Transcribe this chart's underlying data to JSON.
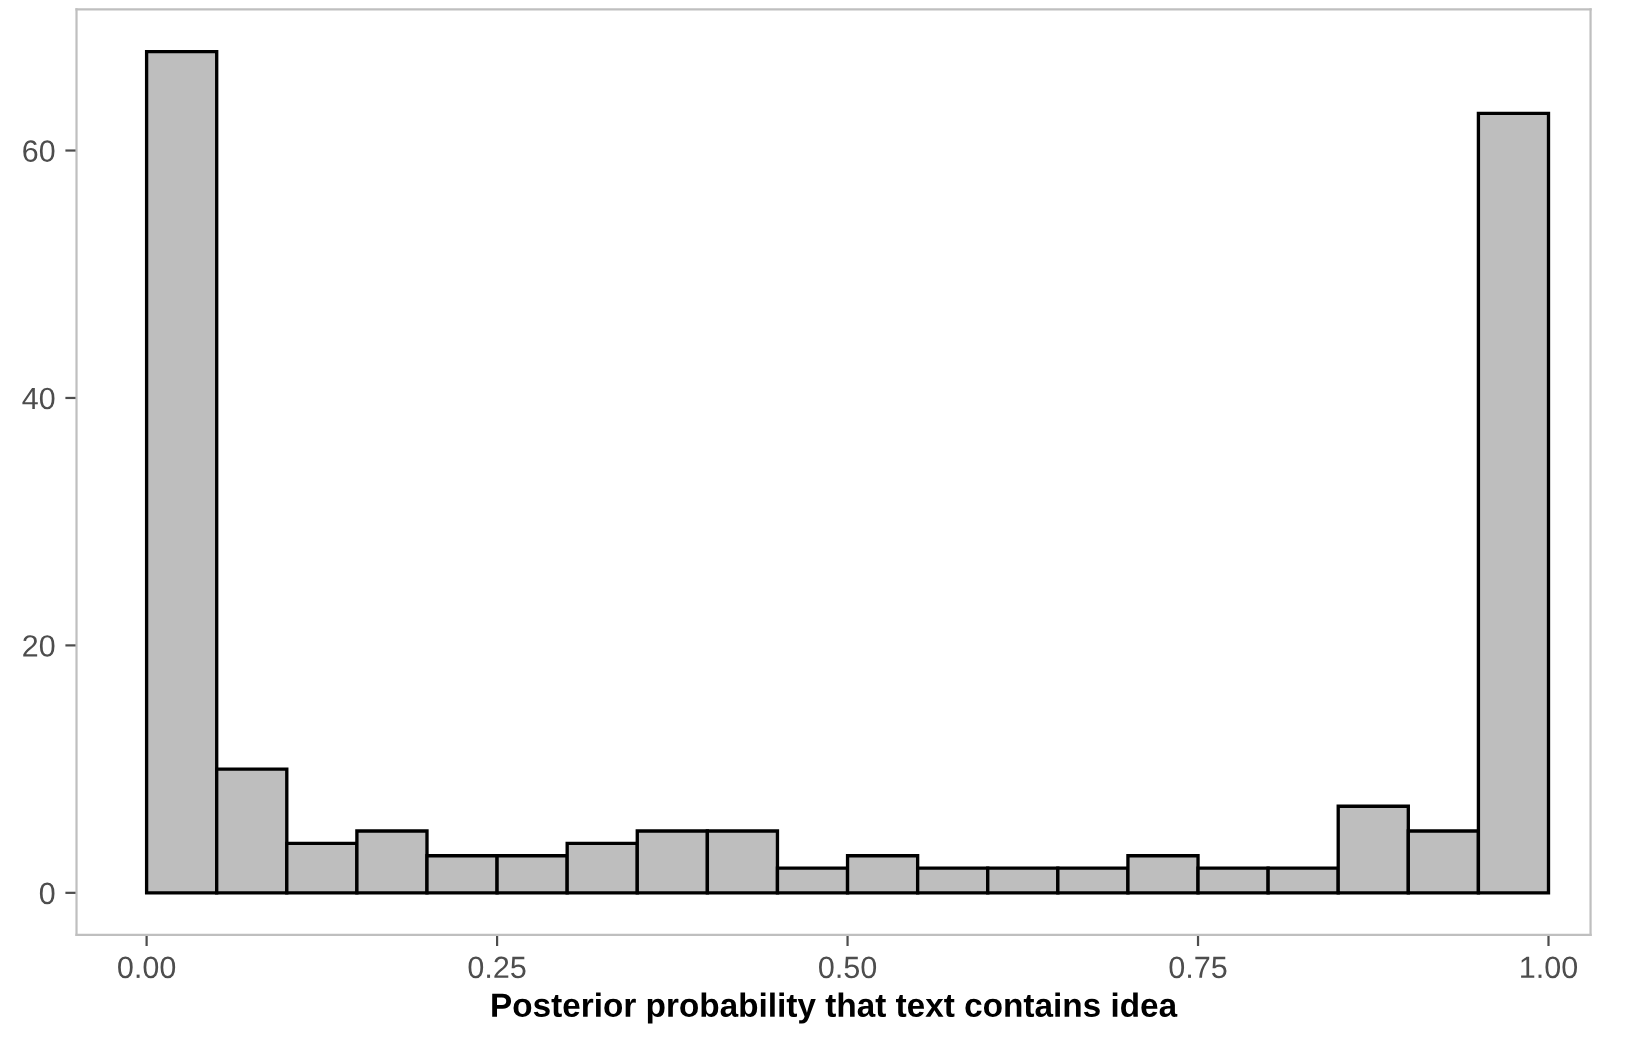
{
  "chart_data": {
    "type": "histogram",
    "xlabel": "Posterior probability that text contains idea",
    "bins": [
      0,
      0.05,
      0.1,
      0.15,
      0.2,
      0.25,
      0.3,
      0.35,
      0.4,
      0.45,
      0.5,
      0.55,
      0.6,
      0.65,
      0.7,
      0.75,
      0.8,
      0.85,
      0.9,
      0.95,
      1.0
    ],
    "values": [
      68,
      10,
      4,
      5,
      3,
      3,
      4,
      5,
      5,
      2,
      3,
      2,
      2,
      2,
      3,
      2,
      2,
      7,
      5,
      63
    ],
    "color": "#bebebe",
    "xlim": [
      -0.05,
      1.03
    ],
    "ylim": [
      -3.4,
      71.4
    ],
    "xticks": [
      {
        "value": 0,
        "label": "0.00"
      },
      {
        "value": 0.25,
        "label": "0.25"
      },
      {
        "value": 0.5,
        "label": "0.50"
      },
      {
        "value": 0.75,
        "label": "0.75"
      },
      {
        "value": 1.0,
        "label": "1.00"
      }
    ],
    "yticks": [
      0,
      20,
      40,
      60
    ],
    "grid": false
  }
}
